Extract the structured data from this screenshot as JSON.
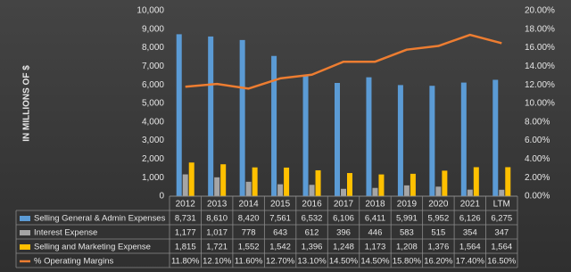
{
  "chart_data": {
    "type": "bar",
    "y_axis_label": "IN MILLIONS OF $",
    "categories": [
      "2012",
      "2013",
      "2014",
      "2015",
      "2016",
      "2017",
      "2018",
      "2019",
      "2020",
      "2021",
      "LTM"
    ],
    "series": [
      {
        "name": "Selling General & Admin Expenses",
        "color": "#5b9bd5",
        "values": [
          8731,
          8610,
          8420,
          7561,
          6532,
          6106,
          6411,
          5991,
          5952,
          6126,
          6275
        ],
        "value_labels": [
          "8,731",
          "8,610",
          "8,420",
          "7,561",
          "6,532",
          "6,106",
          "6,411",
          "5,991",
          "5,952",
          "6,126",
          "6,275"
        ]
      },
      {
        "name": "Interest Expense",
        "color": "#a5a5a5",
        "values": [
          1177,
          1017,
          778,
          643,
          612,
          396,
          446,
          583,
          515,
          354,
          347
        ],
        "value_labels": [
          "1,177",
          "1,017",
          "778",
          "643",
          "612",
          "396",
          "446",
          "583",
          "515",
          "354",
          "347"
        ]
      },
      {
        "name": "Selling and Marketing Expense",
        "color": "#ffc000",
        "values": [
          1815,
          1721,
          1552,
          1542,
          1396,
          1248,
          1173,
          1208,
          1376,
          1564,
          1564
        ],
        "value_labels": [
          "1,815",
          "1,721",
          "1,552",
          "1,542",
          "1,396",
          "1,248",
          "1,173",
          "1,208",
          "1,376",
          "1,564",
          "1,564"
        ]
      },
      {
        "name": "% Operating Margins",
        "color": "#ed7d31",
        "type": "line",
        "axis": "y2",
        "values": [
          11.8,
          12.1,
          11.6,
          12.7,
          13.1,
          14.5,
          14.5,
          15.8,
          16.2,
          17.4,
          16.5
        ],
        "value_labels": [
          "11.80%",
          "12.10%",
          "11.60%",
          "12.70%",
          "13.10%",
          "14.50%",
          "14.50%",
          "15.80%",
          "16.20%",
          "17.40%",
          "16.50%"
        ]
      }
    ],
    "ylim": [
      0,
      10000
    ],
    "yticks": [
      0,
      {
        "value": 1000,
        "label": "1,000"
      },
      {
        "value": 2000,
        "label": "2,000"
      },
      {
        "value": 3000,
        "label": "3,000"
      },
      {
        "value": 4000,
        "label": "4,000"
      },
      {
        "value": 5000,
        "label": "5,000"
      },
      {
        "value": 6000,
        "label": "6,000"
      },
      {
        "value": 7000,
        "label": "7,000"
      },
      {
        "value": 8000,
        "label": "8,000"
      },
      {
        "value": 9000,
        "label": "9,000"
      },
      {
        "value": 10000,
        "label": "10,000"
      }
    ],
    "y2lim": [
      0,
      20
    ],
    "y2ticks": [
      {
        "value": 0,
        "label": "0.00%"
      },
      {
        "value": 2,
        "label": "2.00%"
      },
      {
        "value": 4,
        "label": "4.00%"
      },
      {
        "value": 6,
        "label": "6.00%"
      },
      {
        "value": 8,
        "label": "8.00%"
      },
      {
        "value": 10,
        "label": "10.00%"
      },
      {
        "value": 12,
        "label": "12.00%"
      },
      {
        "value": 14,
        "label": "14.00%"
      },
      {
        "value": 16,
        "label": "16.00%"
      },
      {
        "value": 18,
        "label": "18.00%"
      },
      {
        "value": 20,
        "label": "20.00%"
      }
    ],
    "grid": false
  }
}
